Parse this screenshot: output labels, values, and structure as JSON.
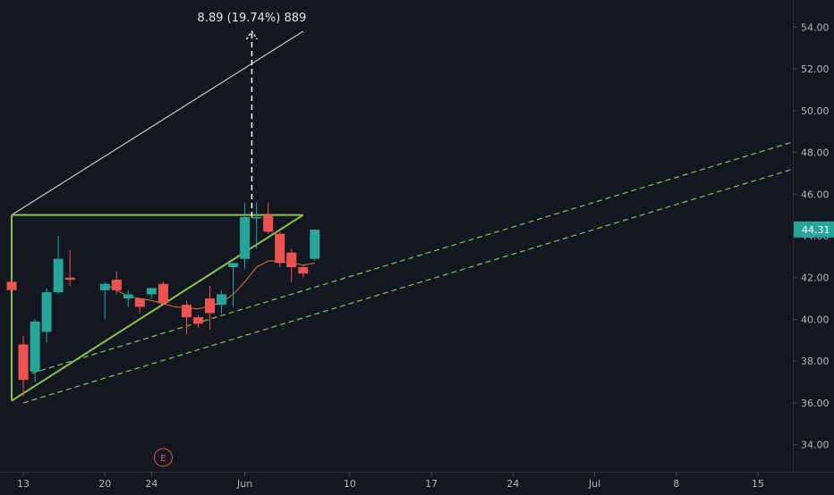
{
  "chart_data": {
    "type": "candlestick",
    "title": "",
    "xlabel": "",
    "ylabel": "",
    "ylim": [
      32.7,
      55.3
    ],
    "y_ticks": [
      "34.00",
      "36.00",
      "38.00",
      "40.00",
      "42.00",
      "44.00",
      "46.00",
      "48.00",
      "50.00",
      "52.00",
      "54.00"
    ],
    "x_ticks": [
      {
        "label": "13",
        "day": 0
      },
      {
        "label": "20",
        "day": 7
      },
      {
        "label": "24",
        "day": 11
      },
      {
        "label": "Jun",
        "day": 19
      },
      {
        "label": "10",
        "day": 28
      },
      {
        "label": "17",
        "day": 35
      },
      {
        "label": "24",
        "day": 42
      },
      {
        "label": "Jul",
        "day": 49
      },
      {
        "label": "8",
        "day": 56
      },
      {
        "label": "15",
        "day": 63
      }
    ],
    "x_days_range": [
      -2,
      66
    ],
    "candles": [
      {
        "day": -1,
        "open": 41.8,
        "high": 41.9,
        "low": 41.4,
        "close": 41.4
      },
      {
        "day": 0,
        "open": 38.8,
        "high": 39.2,
        "low": 36.3,
        "close": 37.1
      },
      {
        "day": 1,
        "open": 37.5,
        "high": 40.0,
        "low": 37.0,
        "close": 39.9
      },
      {
        "day": 2,
        "open": 39.4,
        "high": 41.5,
        "low": 38.9,
        "close": 41.3
      },
      {
        "day": 3,
        "open": 41.3,
        "high": 44.0,
        "low": 41.2,
        "close": 42.9
      },
      {
        "day": 4,
        "open": 42.0,
        "high": 43.3,
        "low": 41.6,
        "close": 41.9
      },
      {
        "day": 7,
        "open": 41.4,
        "high": 41.8,
        "low": 40.0,
        "close": 41.7
      },
      {
        "day": 8,
        "open": 41.9,
        "high": 42.3,
        "low": 41.2,
        "close": 41.4
      },
      {
        "day": 9,
        "open": 41.0,
        "high": 41.4,
        "low": 40.6,
        "close": 41.2
      },
      {
        "day": 10,
        "open": 41.0,
        "high": 41.0,
        "low": 40.3,
        "close": 40.6
      },
      {
        "day": 11,
        "open": 41.2,
        "high": 41.5,
        "low": 41.0,
        "close": 41.5
      },
      {
        "day": 12,
        "open": 41.7,
        "high": 41.8,
        "low": 40.7,
        "close": 40.8
      },
      {
        "day": 14,
        "open": 40.7,
        "high": 40.9,
        "low": 39.3,
        "close": 40.1
      },
      {
        "day": 15,
        "open": 40.1,
        "high": 40.2,
        "low": 39.6,
        "close": 39.8
      },
      {
        "day": 16,
        "open": 41.0,
        "high": 41.6,
        "low": 39.5,
        "close": 40.3
      },
      {
        "day": 17,
        "open": 40.7,
        "high": 41.4,
        "low": 40.3,
        "close": 41.2
      },
      {
        "day": 18,
        "open": 42.5,
        "high": 42.7,
        "low": 40.6,
        "close": 42.7
      },
      {
        "day": 19,
        "open": 42.9,
        "high": 45.6,
        "low": 42.4,
        "close": 44.9
      },
      {
        "day": 20,
        "open": 44.9,
        "high": 45.6,
        "low": 43.4,
        "close": 44.9
      },
      {
        "day": 21,
        "open": 45.0,
        "high": 45.6,
        "low": 44.1,
        "close": 44.2
      },
      {
        "day": 22,
        "open": 44.1,
        "high": 44.2,
        "low": 42.5,
        "close": 42.7
      },
      {
        "day": 23,
        "open": 43.2,
        "high": 43.4,
        "low": 41.8,
        "close": 42.5
      },
      {
        "day": 24,
        "open": 42.5,
        "high": 42.6,
        "low": 42.0,
        "close": 42.2
      },
      {
        "day": 25,
        "open": 42.9,
        "high": 44.3,
        "low": 42.8,
        "close": 44.3
      }
    ],
    "moving_average": [
      {
        "day": 7,
        "value": 41.7
      },
      {
        "day": 9,
        "value": 41.1
      },
      {
        "day": 11,
        "value": 40.9
      },
      {
        "day": 13,
        "value": 40.6
      },
      {
        "day": 15,
        "value": 40.5
      },
      {
        "day": 17,
        "value": 40.8
      },
      {
        "day": 18,
        "value": 41.2
      },
      {
        "day": 19,
        "value": 41.8
      },
      {
        "day": 20,
        "value": 42.5
      },
      {
        "day": 21,
        "value": 42.8
      },
      {
        "day": 22,
        "value": 42.8
      },
      {
        "day": 23,
        "value": 42.7
      },
      {
        "day": 24,
        "value": 42.6
      },
      {
        "day": 25,
        "value": 42.7
      }
    ],
    "drawings": {
      "resistance_line": {
        "from": {
          "day": -1,
          "value": 45.0
        },
        "to": {
          "day": 24,
          "value": 45.0
        }
      },
      "ascending_support": {
        "from": {
          "day": -1,
          "value": 36.1
        },
        "to": {
          "day": 24,
          "value": 45.0
        }
      },
      "left_vertical": {
        "from": {
          "day": -1,
          "value": 36.1
        },
        "to": {
          "day": -1,
          "value": 45.0
        }
      },
      "projection_line": {
        "from": {
          "day": -1,
          "value": 45.0
        },
        "to": {
          "day": 24,
          "value": 53.8
        }
      },
      "dashed_channel_upper": {
        "from": {
          "day": 0,
          "value": 37.3
        },
        "to": {
          "day": 66,
          "value": 48.5
        }
      },
      "dashed_channel_lower": {
        "from": {
          "day": 0,
          "value": 36.0
        },
        "to": {
          "day": 66,
          "value": 47.2
        }
      },
      "measure_arrow": {
        "day": 19.6,
        "from": 44.9,
        "to": 53.8
      }
    },
    "measure_label": "8.89 (19.74%) 889",
    "earnings_marker": {
      "label": "E",
      "day": 12
    },
    "last_price": {
      "label": "44.31",
      "value": 44.31
    },
    "colors": {
      "background": "#131722",
      "up": "#26a69a",
      "down": "#ef5350",
      "green_lines": "#8bc34a",
      "projection": "#c5cad3",
      "axis_text": "#b2b5be",
      "ma": "#e0743a",
      "grid_border": "#2a2e39"
    }
  }
}
